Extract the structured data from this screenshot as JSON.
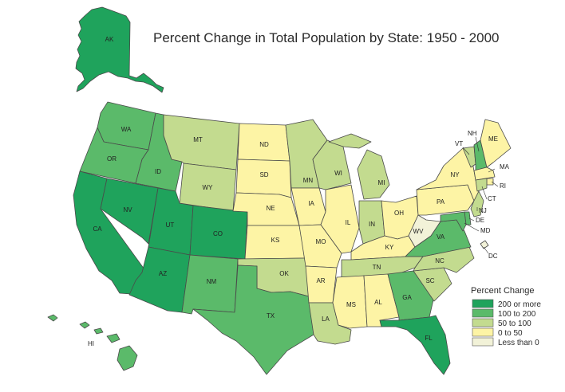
{
  "title": "Percent Change in Total Population by State: 1950 - 2000",
  "colors": {
    "200plus": "#1fa35c",
    "100to200": "#5bba6a",
    "50to100": "#c3db8f",
    "0to50": "#fdf4a5",
    "lt0": "#f2f2d8"
  },
  "legend": {
    "title": "Percent Change",
    "items": [
      {
        "key": "200plus",
        "label": "200 or more"
      },
      {
        "key": "100to200",
        "label": "100 to 200"
      },
      {
        "key": "50to100",
        "label": "50 to 100"
      },
      {
        "key": "0to50",
        "label": "0 to 50"
      },
      {
        "key": "lt0",
        "label": "Less than 0"
      }
    ]
  },
  "states": {
    "AK": "200plus",
    "HI": "100to200",
    "WA": "100to200",
    "OR": "100to200",
    "CA": "200plus",
    "ID": "100to200",
    "NV": "200plus",
    "UT": "200plus",
    "AZ": "200plus",
    "MT": "50to100",
    "WY": "50to100",
    "CO": "200plus",
    "NM": "100to200",
    "ND": "0to50",
    "SD": "0to50",
    "NE": "0to50",
    "KS": "0to50",
    "OK": "50to100",
    "TX": "100to200",
    "MN": "50to100",
    "IA": "0to50",
    "MO": "0to50",
    "AR": "0to50",
    "LA": "50to100",
    "WI": "50to100",
    "IL": "0to50",
    "MI": "50to100",
    "IN": "50to100",
    "OH": "0to50",
    "KY": "0to50",
    "TN": "50to100",
    "MS": "0to50",
    "AL": "0to50",
    "GA": "100to200",
    "FL": "200plus",
    "SC": "50to100",
    "NC": "50to100",
    "VA": "100to200",
    "WV": "lt0",
    "PA": "0to50",
    "NY": "0to50",
    "VT": "50to100",
    "NH": "100to200",
    "ME": "0to50",
    "MA": "0to50",
    "RI": "0to50",
    "CT": "50to100",
    "NJ": "50to100",
    "DE": "100to200",
    "MD": "100to200",
    "DC": "lt0"
  },
  "state_labels": [
    "AK",
    "HI",
    "WA",
    "OR",
    "CA",
    "ID",
    "NV",
    "UT",
    "AZ",
    "MT",
    "WY",
    "CO",
    "NM",
    "ND",
    "SD",
    "NE",
    "KS",
    "OK",
    "TX",
    "MN",
    "IA",
    "MO",
    "AR",
    "LA",
    "WI",
    "IL",
    "MI",
    "IN",
    "OH",
    "KY",
    "TN",
    "MS",
    "AL",
    "GA",
    "FL",
    "SC",
    "NC",
    "VA",
    "WV",
    "PA",
    "NY",
    "VT",
    "NH",
    "ME",
    "MA",
    "RI",
    "CT",
    "NJ",
    "DE",
    "MD",
    "DC"
  ]
}
